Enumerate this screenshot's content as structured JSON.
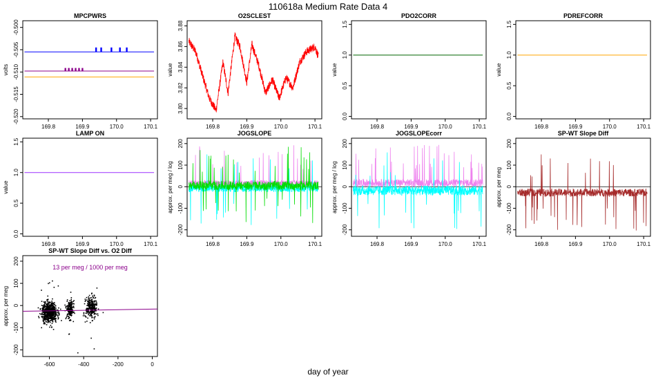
{
  "title": "110618a   Medium Rate Data 4",
  "xlabel": "day of year",
  "colors": {
    "blue": "#0000ff",
    "purple": "#8b008b",
    "orange": "#ffa500",
    "red": "#ff0000",
    "darkgreen": "#006400",
    "violet": "#9b30ff",
    "green": "#00dd00",
    "cyan": "#00ffff",
    "magenta": "#ee82ee",
    "brown": "#a52a2a",
    "darkmagenta": "#8b008b"
  },
  "chart_data": [
    {
      "id": "mpcpwrs",
      "type": "line",
      "title": "MPCPWRS",
      "ylabel": "volts",
      "xlim": [
        169.725,
        170.12
      ],
      "ylim": [
        -0.5205,
        -0.4985
      ],
      "xticks": [
        169.8,
        169.9,
        170.0,
        170.1
      ],
      "xticklabels": [
        "169.8",
        "169.9",
        "170.0",
        "170.1"
      ],
      "yticks": [
        -0.5,
        -0.505,
        -0.51,
        -0.515,
        -0.52
      ],
      "yticklabels": [
        "-0.500",
        "-0.505",
        "-0.510",
        "-0.515",
        "-0.520"
      ],
      "series": [
        {
          "color": "blue",
          "y": -0.5055,
          "spike_x": [
            169.94,
            169.955,
            169.985,
            170.01,
            170.03
          ],
          "spike_to": -0.5045
        },
        {
          "color": "purple",
          "y": -0.5098,
          "spike_x": [
            169.85,
            169.86,
            169.87,
            169.88,
            169.89,
            169.9
          ],
          "spike_to": -0.5091
        },
        {
          "color": "orange",
          "y": -0.5111
        }
      ]
    },
    {
      "id": "o2sclest",
      "type": "line",
      "title": "O2SCLEST",
      "ylabel": "value",
      "xlim": [
        169.725,
        170.12
      ],
      "ylim": [
        3.79,
        3.885
      ],
      "xticks": [
        169.8,
        169.9,
        170.0,
        170.1
      ],
      "xticklabels": [
        "169.8",
        "169.9",
        "170.0",
        "170.1"
      ],
      "yticks": [
        3.8,
        3.82,
        3.84,
        3.86,
        3.88
      ],
      "yticklabels": [
        "3.80",
        "3.82",
        "3.84",
        "3.86",
        "3.88"
      ],
      "series": [
        {
          "color": "red",
          "x": [
            169.73,
            169.75,
            169.77,
            169.79,
            169.81,
            169.83,
            169.845,
            169.865,
            169.88,
            169.9,
            169.915,
            169.935,
            169.955,
            169.975,
            169.995,
            170.015,
            170.035,
            170.055,
            170.075,
            170.1,
            170.11
          ],
          "y": [
            3.865,
            3.855,
            3.832,
            3.81,
            3.798,
            3.845,
            3.815,
            3.87,
            3.86,
            3.825,
            3.862,
            3.842,
            3.815,
            3.828,
            3.81,
            3.83,
            3.82,
            3.845,
            3.855,
            3.86,
            3.85
          ],
          "noise": 0.004
        }
      ]
    },
    {
      "id": "pdo2corr",
      "type": "line",
      "title": "PDO2CORR",
      "ylabel": "value",
      "xlim": [
        169.725,
        170.12
      ],
      "ylim": [
        -0.04,
        1.56
      ],
      "xticks": [
        169.8,
        169.9,
        170.0,
        170.1
      ],
      "xticklabels": [
        "169.8",
        "169.9",
        "170.0",
        "170.1"
      ],
      "yticks": [
        0.0,
        0.5,
        1.0,
        1.5
      ],
      "yticklabels": [
        "0.0",
        "0.5",
        "1.0",
        "1.5"
      ],
      "series": [
        {
          "color": "darkgreen",
          "y": 1.0
        }
      ]
    },
    {
      "id": "pdrefcorr",
      "type": "line",
      "title": "PDREFCORR",
      "ylabel": "value",
      "xlim": [
        169.725,
        170.12
      ],
      "ylim": [
        -0.04,
        1.56
      ],
      "xticks": [
        169.8,
        169.9,
        170.0,
        170.1
      ],
      "xticklabels": [
        "169.8",
        "169.9",
        "170.0",
        "170.1"
      ],
      "yticks": [
        0.0,
        0.5,
        1.0,
        1.5
      ],
      "yticklabels": [
        "0.0",
        "0.5",
        "1.0",
        "1.5"
      ],
      "series": [
        {
          "color": "orange",
          "y": 1.0
        }
      ]
    },
    {
      "id": "lampon",
      "type": "line",
      "title": "LAMP ON",
      "ylabel": "value",
      "xlim": [
        169.725,
        170.12
      ],
      "ylim": [
        -0.04,
        1.56
      ],
      "xticks": [
        169.8,
        169.9,
        170.0,
        170.1
      ],
      "xticklabels": [
        "169.8",
        "169.9",
        "170.0",
        "170.1"
      ],
      "yticks": [
        0.0,
        0.5,
        1.0,
        1.5
      ],
      "yticklabels": [
        "0.0",
        "0.5",
        "1.0",
        "1.5"
      ],
      "series": [
        {
          "color": "violet",
          "y": 1.0
        }
      ]
    },
    {
      "id": "jogslope",
      "type": "line",
      "title": "JOGSLOPE",
      "ylabel": "approx. per meg / log",
      "xlim": [
        169.725,
        170.12
      ],
      "ylim": [
        -230,
        225
      ],
      "xticks": [
        169.8,
        169.9,
        170.0,
        170.1
      ],
      "xticklabels": [
        "169.8",
        "169.9",
        "170.0",
        "170.1"
      ],
      "yticks": [
        -200,
        -100,
        0,
        100,
        200
      ],
      "yticklabels": [
        "-200",
        "-100",
        "0",
        "100",
        "200"
      ],
      "hline": 0,
      "series": [
        {
          "color": "magenta",
          "band": [
            0,
            30
          ],
          "spikes": "up"
        },
        {
          "color": "cyan",
          "band": [
            -25,
            10
          ],
          "spikes": "both"
        },
        {
          "color": "green",
          "band": [
            -15,
            25
          ],
          "spikes": "both"
        }
      ]
    },
    {
      "id": "jogslopecorr",
      "type": "line",
      "title": "JOGSLOPEcorr",
      "ylabel": "approx. per meg / log",
      "xlim": [
        169.725,
        170.12
      ],
      "ylim": [
        -230,
        225
      ],
      "xticks": [
        169.8,
        169.9,
        170.0,
        170.1
      ],
      "xticklabels": [
        "169.8",
        "169.9",
        "170.0",
        "170.1"
      ],
      "yticks": [
        -200,
        -100,
        0,
        100,
        200
      ],
      "yticklabels": [
        "-200",
        "-100",
        "0",
        "100",
        "200"
      ],
      "hline": 0,
      "series": [
        {
          "color": "magenta",
          "band": [
            0,
            35
          ],
          "spikes": "up"
        },
        {
          "color": "cyan",
          "band": [
            -40,
            5
          ],
          "spikes": "both"
        }
      ]
    },
    {
      "id": "spwt",
      "type": "line",
      "title": "SP-WT Slope Diff",
      "ylabel": "approx. per meg",
      "xlim": [
        169.725,
        170.12
      ],
      "ylim": [
        -230,
        225
      ],
      "xticks": [
        169.8,
        169.9,
        170.0,
        170.1
      ],
      "xticklabels": [
        "169.8",
        "169.9",
        "170.0",
        "170.1"
      ],
      "yticks": [
        -200,
        -100,
        0,
        100,
        200
      ],
      "yticklabels": [
        "-200",
        "-100",
        "0",
        "100",
        "200"
      ],
      "hline": 0,
      "series": [
        {
          "color": "brown",
          "band": [
            -45,
            -10
          ],
          "spikes": "both"
        }
      ]
    },
    {
      "id": "scatter",
      "type": "scatter",
      "title": "SP-WT Slope Diff vs. O2 Diff",
      "ylabel": "approx. per meg",
      "annotation": "13 per meg / 1000 per meg",
      "xlim": [
        -755,
        30
      ],
      "ylim": [
        -230,
        225
      ],
      "xticks": [
        -600,
        -400,
        -200,
        0
      ],
      "xticklabels": [
        "-600",
        "-400",
        "-200",
        "0"
      ],
      "yticks": [
        -200,
        -100,
        0,
        100,
        200
      ],
      "yticklabels": [
        "-200",
        "-100",
        "0",
        "100",
        "200"
      ],
      "clusters": [
        {
          "cx": -600,
          "cy": -30,
          "sx": 22,
          "sy": 22,
          "n": 650
        },
        {
          "cx": -480,
          "cy": -20,
          "sx": 10,
          "sy": 20,
          "n": 180
        },
        {
          "cx": -355,
          "cy": -10,
          "sx": 16,
          "sy": 24,
          "n": 260
        }
      ],
      "fit": {
        "slope": 0.013,
        "intercept": -24,
        "color": "darkmagenta"
      }
    }
  ]
}
